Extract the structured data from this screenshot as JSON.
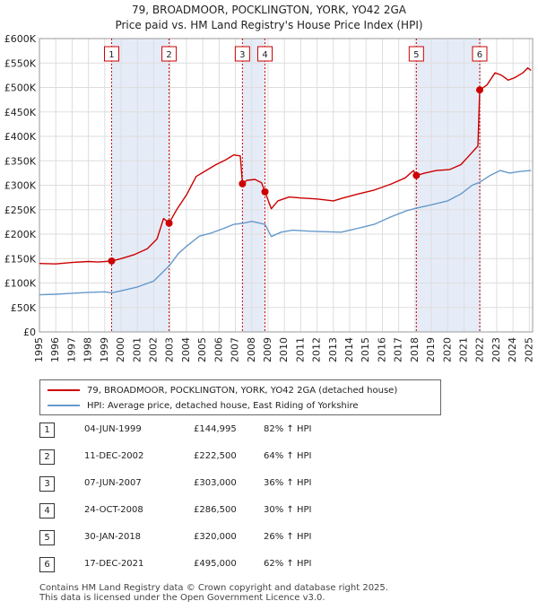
{
  "title_line1": "79, BROADMOOR, POCKLINGTON, YORK, YO42 2GA",
  "title_line2": "Price paid vs. HM Land Registry's House Price Index (HPI)",
  "chart_data": {
    "type": "line",
    "xlim": [
      1995,
      2025.2
    ],
    "ylim": [
      0,
      600000
    ],
    "y_ticks": [
      0,
      50000,
      100000,
      150000,
      200000,
      250000,
      300000,
      350000,
      400000,
      450000,
      500000,
      550000,
      600000
    ],
    "y_tick_labels": [
      "£0",
      "£50K",
      "£100K",
      "£150K",
      "£200K",
      "£250K",
      "£300K",
      "£350K",
      "£400K",
      "£450K",
      "£500K",
      "£550K",
      "£600K"
    ],
    "x_ticks": [
      1995,
      1996,
      1997,
      1998,
      1999,
      2000,
      2001,
      2002,
      2003,
      2004,
      2005,
      2006,
      2007,
      2008,
      2009,
      2010,
      2011,
      2012,
      2013,
      2014,
      2015,
      2016,
      2017,
      2018,
      2019,
      2020,
      2021,
      2022,
      2023,
      2024,
      2025
    ],
    "x_tick_labels": [
      "1995",
      "1996",
      "1997",
      "1998",
      "1999",
      "2000",
      "2001",
      "2002",
      "2003",
      "2004",
      "2005",
      "2006",
      "2007",
      "2008",
      "2009",
      "2010",
      "2011",
      "2012",
      "2013",
      "2014",
      "2015",
      "2016",
      "2017",
      "2018",
      "2019",
      "2020",
      "2021",
      "2022",
      "2023",
      "2024",
      "2025"
    ],
    "shaded_spans": [
      [
        1999.42,
        2002.94
      ],
      [
        2007.43,
        2008.81
      ],
      [
        2018.08,
        2021.96
      ]
    ],
    "series": [
      {
        "name": "79, BROADMOOR, POCKLINGTON, YORK, YO42 2GA (detached house)",
        "color": "#cc0000",
        "points": [
          [
            1995,
            140000
          ],
          [
            1996,
            139000
          ],
          [
            1997,
            142000
          ],
          [
            1998,
            144000
          ],
          [
            1998.6,
            143000
          ],
          [
            1999.42,
            144995
          ],
          [
            2000,
            150000
          ],
          [
            2000.8,
            158000
          ],
          [
            2001.6,
            170000
          ],
          [
            2002.2,
            190000
          ],
          [
            2002.6,
            232000
          ],
          [
            2002.94,
            222500
          ],
          [
            2003.4,
            250000
          ],
          [
            2004,
            280000
          ],
          [
            2004.6,
            318000
          ],
          [
            2005.2,
            330000
          ],
          [
            2005.8,
            342000
          ],
          [
            2006.4,
            352000
          ],
          [
            2006.9,
            362000
          ],
          [
            2007.3,
            360000
          ],
          [
            2007.43,
            303000
          ],
          [
            2007.7,
            310000
          ],
          [
            2008.2,
            312000
          ],
          [
            2008.6,
            305000
          ],
          [
            2008.81,
            286500
          ],
          [
            2009.2,
            252000
          ],
          [
            2009.6,
            268000
          ],
          [
            2010.3,
            276000
          ],
          [
            2011,
            274000
          ],
          [
            2012,
            272000
          ],
          [
            2013,
            268000
          ],
          [
            2013.6,
            274000
          ],
          [
            2014.5,
            282000
          ],
          [
            2015.5,
            290000
          ],
          [
            2016.5,
            302000
          ],
          [
            2017.4,
            315000
          ],
          [
            2017.9,
            330000
          ],
          [
            2018.08,
            320000
          ],
          [
            2018.6,
            325000
          ],
          [
            2019.3,
            330000
          ],
          [
            2020.1,
            332000
          ],
          [
            2020.8,
            342000
          ],
          [
            2021.3,
            360000
          ],
          [
            2021.7,
            375000
          ],
          [
            2021.85,
            380000
          ],
          [
            2021.96,
            495000
          ],
          [
            2022.4,
            505000
          ],
          [
            2022.9,
            530000
          ],
          [
            2023.3,
            525000
          ],
          [
            2023.7,
            515000
          ],
          [
            2024.1,
            520000
          ],
          [
            2024.6,
            530000
          ],
          [
            2024.9,
            540000
          ],
          [
            2025.1,
            535000
          ]
        ]
      },
      {
        "name": "HPI: Average price, detached house, East Riding of Yorkshire",
        "color": "#6699cc",
        "points": [
          [
            1995,
            76000
          ],
          [
            1996,
            77000
          ],
          [
            1997,
            79000
          ],
          [
            1998,
            81000
          ],
          [
            1999,
            82000
          ],
          [
            1999.42,
            80000
          ],
          [
            2000,
            84000
          ],
          [
            2001,
            92000
          ],
          [
            2002,
            104000
          ],
          [
            2002.94,
            135000
          ],
          [
            2003.5,
            160000
          ],
          [
            2004,
            175000
          ],
          [
            2004.8,
            196000
          ],
          [
            2005.5,
            202000
          ],
          [
            2006.3,
            212000
          ],
          [
            2006.9,
            220000
          ],
          [
            2007.43,
            222000
          ],
          [
            2008,
            226000
          ],
          [
            2008.81,
            220000
          ],
          [
            2009.2,
            195000
          ],
          [
            2009.8,
            204000
          ],
          [
            2010.5,
            208000
          ],
          [
            2011.5,
            206000
          ],
          [
            2012.5,
            205000
          ],
          [
            2013.5,
            204000
          ],
          [
            2014.5,
            212000
          ],
          [
            2015.5,
            220000
          ],
          [
            2016.5,
            235000
          ],
          [
            2017.5,
            248000
          ],
          [
            2018.08,
            253000
          ],
          [
            2019,
            260000
          ],
          [
            2020,
            268000
          ],
          [
            2020.8,
            282000
          ],
          [
            2021.5,
            300000
          ],
          [
            2021.96,
            306000
          ],
          [
            2022.6,
            320000
          ],
          [
            2023.2,
            330000
          ],
          [
            2023.8,
            325000
          ],
          [
            2024.4,
            328000
          ],
          [
            2025.1,
            330000
          ]
        ]
      }
    ],
    "sales": [
      {
        "label": "1",
        "x": 1999.42,
        "y": 144995
      },
      {
        "label": "2",
        "x": 2002.94,
        "y": 222500
      },
      {
        "label": "3",
        "x": 2007.43,
        "y": 303000
      },
      {
        "label": "4",
        "x": 2008.81,
        "y": 286500
      },
      {
        "label": "5",
        "x": 2018.08,
        "y": 320000
      },
      {
        "label": "6",
        "x": 2021.96,
        "y": 495000
      }
    ]
  },
  "legend": {
    "property": "79, BROADMOOR, POCKLINGTON, YORK, YO42 2GA (detached house)",
    "hpi": "HPI: Average price, detached house, East Riding of Yorkshire",
    "property_color": "#cc0000",
    "hpi_color": "#6699cc"
  },
  "transactions": [
    {
      "num": "1",
      "date": "04-JUN-1999",
      "price": "£144,995",
      "hpi": "82% ↑ HPI"
    },
    {
      "num": "2",
      "date": "11-DEC-2002",
      "price": "£222,500",
      "hpi": "64% ↑ HPI"
    },
    {
      "num": "3",
      "date": "07-JUN-2007",
      "price": "£303,000",
      "hpi": "36% ↑ HPI"
    },
    {
      "num": "4",
      "date": "24-OCT-2008",
      "price": "£286,500",
      "hpi": "30% ↑ HPI"
    },
    {
      "num": "5",
      "date": "30-JAN-2018",
      "price": "£320,000",
      "hpi": "26% ↑ HPI"
    },
    {
      "num": "6",
      "date": "17-DEC-2021",
      "price": "£495,000",
      "hpi": "62% ↑ HPI"
    }
  ],
  "footer_line1": "Contains HM Land Registry data © Crown copyright and database right 2025.",
  "footer_line2": "This data is licensed under the Open Government Licence v3.0."
}
